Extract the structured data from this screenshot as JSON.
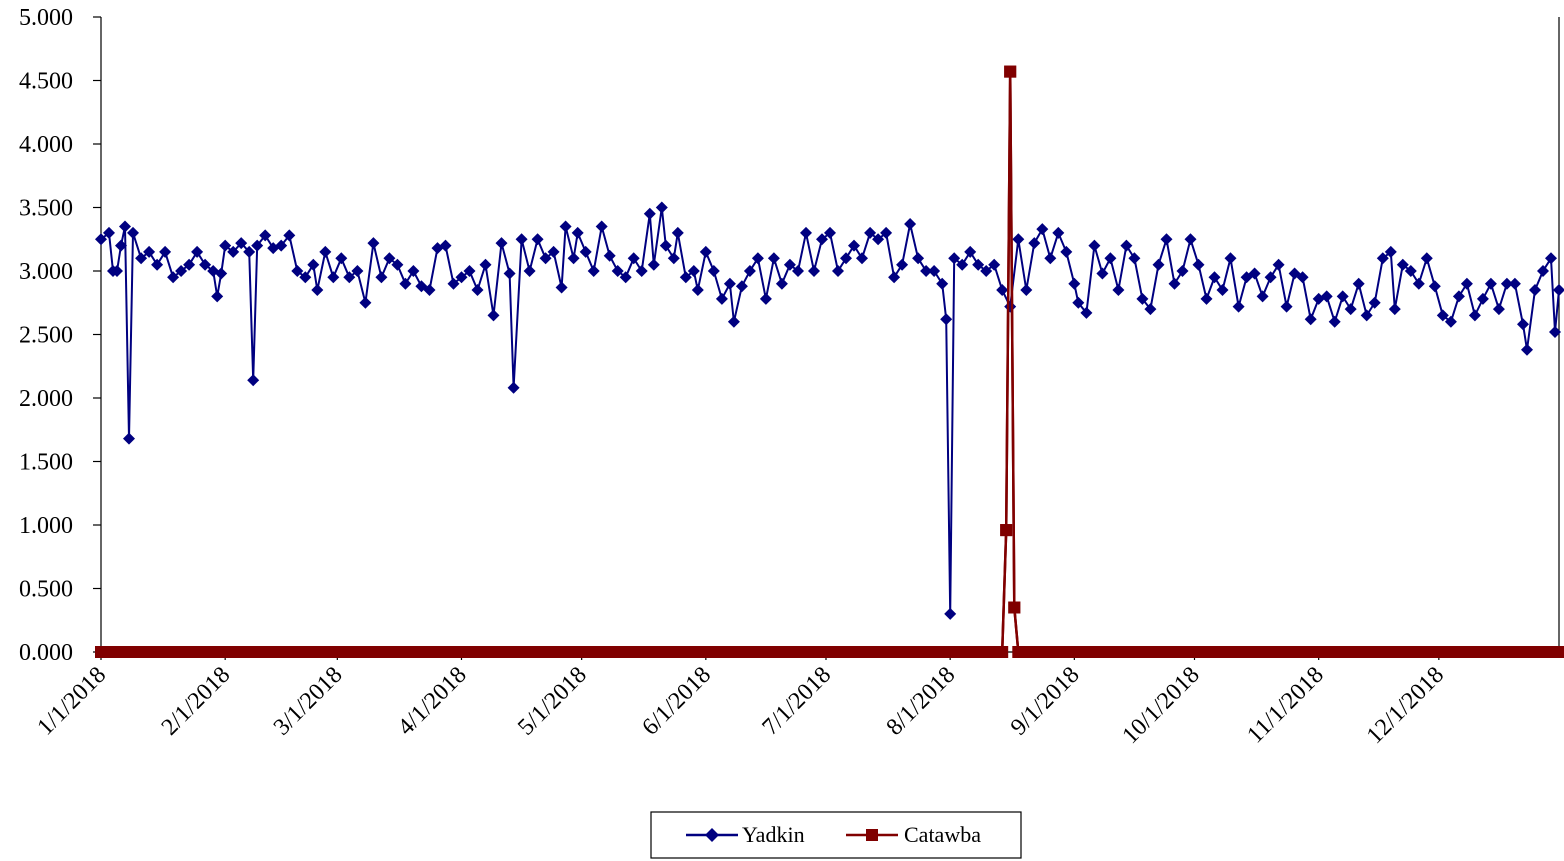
{
  "chart_data": {
    "type": "line",
    "title": "",
    "xlabel": "",
    "ylabel": "",
    "x_start": "1/1/2018",
    "x_end": "12/31/2018",
    "ylim": [
      0,
      5
    ],
    "y_ticks": [
      "0.000",
      "0.500",
      "1.000",
      "1.500",
      "2.000",
      "2.500",
      "3.000",
      "3.500",
      "4.000",
      "4.500",
      "5.000"
    ],
    "x_ticks": [
      {
        "label": "1/1/2018",
        "date": "2018-01-01"
      },
      {
        "label": "2/1/2018",
        "date": "2018-02-01"
      },
      {
        "label": "3/1/2018",
        "date": "2018-03-01"
      },
      {
        "label": "4/1/2018",
        "date": "2018-04-01"
      },
      {
        "label": "5/1/2018",
        "date": "2018-05-01"
      },
      {
        "label": "6/1/2018",
        "date": "2018-06-01"
      },
      {
        "label": "7/1/2018",
        "date": "2018-07-01"
      },
      {
        "label": "8/1/2018",
        "date": "2018-08-01"
      },
      {
        "label": "9/1/2018",
        "date": "2018-09-01"
      },
      {
        "label": "10/1/2018",
        "date": "2018-10-01"
      },
      {
        "label": "11/1/2018",
        "date": "2018-11-01"
      },
      {
        "label": "12/1/2018",
        "date": "2018-12-01"
      }
    ],
    "grid": false,
    "legend_position": "bottom",
    "series": [
      {
        "name": "Yadkin",
        "color": "#000080",
        "marker": "diamond",
        "points": [
          [
            "2018-01-01",
            3.25
          ],
          [
            "2018-01-03",
            3.3
          ],
          [
            "2018-01-04",
            3.0
          ],
          [
            "2018-01-05",
            3.0
          ],
          [
            "2018-01-06",
            3.2
          ],
          [
            "2018-01-07",
            3.35
          ],
          [
            "2018-01-08",
            1.68
          ],
          [
            "2018-01-09",
            3.3
          ],
          [
            "2018-01-11",
            3.1
          ],
          [
            "2018-01-13",
            3.15
          ],
          [
            "2018-01-15",
            3.05
          ],
          [
            "2018-01-17",
            3.15
          ],
          [
            "2018-01-19",
            2.95
          ],
          [
            "2018-01-21",
            3.0
          ],
          [
            "2018-01-23",
            3.05
          ],
          [
            "2018-01-25",
            3.15
          ],
          [
            "2018-01-27",
            3.05
          ],
          [
            "2018-01-29",
            3.0
          ],
          [
            "2018-01-30",
            2.8
          ],
          [
            "2018-01-31",
            2.98
          ],
          [
            "2018-02-01",
            3.2
          ],
          [
            "2018-02-03",
            3.15
          ],
          [
            "2018-02-05",
            3.22
          ],
          [
            "2018-02-07",
            3.15
          ],
          [
            "2018-02-08",
            2.14
          ],
          [
            "2018-02-09",
            3.2
          ],
          [
            "2018-02-11",
            3.28
          ],
          [
            "2018-02-13",
            3.18
          ],
          [
            "2018-02-15",
            3.2
          ],
          [
            "2018-02-17",
            3.28
          ],
          [
            "2018-02-19",
            3.0
          ],
          [
            "2018-02-21",
            2.95
          ],
          [
            "2018-02-23",
            3.05
          ],
          [
            "2018-02-24",
            2.85
          ],
          [
            "2018-02-26",
            3.15
          ],
          [
            "2018-02-28",
            2.95
          ],
          [
            "2018-03-02",
            3.1
          ],
          [
            "2018-03-04",
            2.95
          ],
          [
            "2018-03-06",
            3.0
          ],
          [
            "2018-03-08",
            2.75
          ],
          [
            "2018-03-10",
            3.22
          ],
          [
            "2018-03-12",
            2.95
          ],
          [
            "2018-03-14",
            3.1
          ],
          [
            "2018-03-16",
            3.05
          ],
          [
            "2018-03-18",
            2.9
          ],
          [
            "2018-03-20",
            3.0
          ],
          [
            "2018-03-22",
            2.88
          ],
          [
            "2018-03-24",
            2.85
          ],
          [
            "2018-03-26",
            3.18
          ],
          [
            "2018-03-28",
            3.2
          ],
          [
            "2018-03-30",
            2.9
          ],
          [
            "2018-04-01",
            2.95
          ],
          [
            "2018-04-03",
            3.0
          ],
          [
            "2018-04-05",
            2.85
          ],
          [
            "2018-04-07",
            3.05
          ],
          [
            "2018-04-09",
            2.65
          ],
          [
            "2018-04-11",
            3.22
          ],
          [
            "2018-04-13",
            2.98
          ],
          [
            "2018-04-14",
            2.08
          ],
          [
            "2018-04-16",
            3.25
          ],
          [
            "2018-04-18",
            3.0
          ],
          [
            "2018-04-20",
            3.25
          ],
          [
            "2018-04-22",
            3.1
          ],
          [
            "2018-04-24",
            3.15
          ],
          [
            "2018-04-26",
            2.87
          ],
          [
            "2018-04-27",
            3.35
          ],
          [
            "2018-04-29",
            3.1
          ],
          [
            "2018-04-30",
            3.3
          ],
          [
            "2018-05-02",
            3.15
          ],
          [
            "2018-05-04",
            3.0
          ],
          [
            "2018-05-06",
            3.35
          ],
          [
            "2018-05-08",
            3.12
          ],
          [
            "2018-05-10",
            3.0
          ],
          [
            "2018-05-12",
            2.95
          ],
          [
            "2018-05-14",
            3.1
          ],
          [
            "2018-05-16",
            3.0
          ],
          [
            "2018-05-18",
            3.45
          ],
          [
            "2018-05-19",
            3.05
          ],
          [
            "2018-05-21",
            3.5
          ],
          [
            "2018-05-22",
            3.2
          ],
          [
            "2018-05-24",
            3.1
          ],
          [
            "2018-05-25",
            3.3
          ],
          [
            "2018-05-27",
            2.95
          ],
          [
            "2018-05-29",
            3.0
          ],
          [
            "2018-05-30",
            2.85
          ],
          [
            "2018-06-01",
            3.15
          ],
          [
            "2018-06-03",
            3.0
          ],
          [
            "2018-06-05",
            2.78
          ],
          [
            "2018-06-07",
            2.9
          ],
          [
            "2018-06-08",
            2.6
          ],
          [
            "2018-06-10",
            2.88
          ],
          [
            "2018-06-12",
            3.0
          ],
          [
            "2018-06-14",
            3.1
          ],
          [
            "2018-06-16",
            2.78
          ],
          [
            "2018-06-18",
            3.1
          ],
          [
            "2018-06-20",
            2.9
          ],
          [
            "2018-06-22",
            3.05
          ],
          [
            "2018-06-24",
            3.0
          ],
          [
            "2018-06-26",
            3.3
          ],
          [
            "2018-06-28",
            3.0
          ],
          [
            "2018-06-30",
            3.25
          ],
          [
            "2018-07-02",
            3.3
          ],
          [
            "2018-07-04",
            3.0
          ],
          [
            "2018-07-06",
            3.1
          ],
          [
            "2018-07-08",
            3.2
          ],
          [
            "2018-07-10",
            3.1
          ],
          [
            "2018-07-12",
            3.3
          ],
          [
            "2018-07-14",
            3.25
          ],
          [
            "2018-07-16",
            3.3
          ],
          [
            "2018-07-18",
            2.95
          ],
          [
            "2018-07-20",
            3.05
          ],
          [
            "2018-07-22",
            3.37
          ],
          [
            "2018-07-24",
            3.1
          ],
          [
            "2018-07-26",
            3.0
          ],
          [
            "2018-07-28",
            3.0
          ],
          [
            "2018-07-30",
            2.9
          ],
          [
            "2018-07-31",
            2.62
          ],
          [
            "2018-08-01",
            0.3
          ],
          [
            "2018-08-02",
            3.1
          ],
          [
            "2018-08-04",
            3.05
          ],
          [
            "2018-08-06",
            3.15
          ],
          [
            "2018-08-08",
            3.05
          ],
          [
            "2018-08-10",
            3.0
          ],
          [
            "2018-08-12",
            3.05
          ],
          [
            "2018-08-14",
            2.85
          ],
          [
            "2018-08-16",
            2.72
          ],
          [
            "2018-08-18",
            3.25
          ],
          [
            "2018-08-20",
            2.85
          ],
          [
            "2018-08-22",
            3.22
          ],
          [
            "2018-08-24",
            3.33
          ],
          [
            "2018-08-26",
            3.1
          ],
          [
            "2018-08-28",
            3.3
          ],
          [
            "2018-08-30",
            3.15
          ],
          [
            "2018-09-01",
            2.9
          ],
          [
            "2018-09-02",
            2.75
          ],
          [
            "2018-09-04",
            2.67
          ],
          [
            "2018-09-06",
            3.2
          ],
          [
            "2018-09-08",
            2.98
          ],
          [
            "2018-09-10",
            3.1
          ],
          [
            "2018-09-12",
            2.85
          ],
          [
            "2018-09-14",
            3.2
          ],
          [
            "2018-09-16",
            3.1
          ],
          [
            "2018-09-18",
            2.78
          ],
          [
            "2018-09-20",
            2.7
          ],
          [
            "2018-09-22",
            3.05
          ],
          [
            "2018-09-24",
            3.25
          ],
          [
            "2018-09-26",
            2.9
          ],
          [
            "2018-09-28",
            3.0
          ],
          [
            "2018-09-30",
            3.25
          ],
          [
            "2018-10-02",
            3.05
          ],
          [
            "2018-10-04",
            2.78
          ],
          [
            "2018-10-06",
            2.95
          ],
          [
            "2018-10-08",
            2.85
          ],
          [
            "2018-10-10",
            3.1
          ],
          [
            "2018-10-12",
            2.72
          ],
          [
            "2018-10-14",
            2.95
          ],
          [
            "2018-10-16",
            2.98
          ],
          [
            "2018-10-18",
            2.8
          ],
          [
            "2018-10-20",
            2.95
          ],
          [
            "2018-10-22",
            3.05
          ],
          [
            "2018-10-24",
            2.72
          ],
          [
            "2018-10-26",
            2.98
          ],
          [
            "2018-10-28",
            2.95
          ],
          [
            "2018-10-30",
            2.62
          ],
          [
            "2018-11-01",
            2.78
          ],
          [
            "2018-11-03",
            2.8
          ],
          [
            "2018-11-05",
            2.6
          ],
          [
            "2018-11-07",
            2.8
          ],
          [
            "2018-11-09",
            2.7
          ],
          [
            "2018-11-11",
            2.9
          ],
          [
            "2018-11-13",
            2.65
          ],
          [
            "2018-11-15",
            2.75
          ],
          [
            "2018-11-17",
            3.1
          ],
          [
            "2018-11-19",
            3.15
          ],
          [
            "2018-11-20",
            2.7
          ],
          [
            "2018-11-22",
            3.05
          ],
          [
            "2018-11-24",
            3.0
          ],
          [
            "2018-11-26",
            2.9
          ],
          [
            "2018-11-28",
            3.1
          ],
          [
            "2018-11-30",
            2.88
          ],
          [
            "2018-12-02",
            2.65
          ],
          [
            "2018-12-04",
            2.6
          ],
          [
            "2018-12-06",
            2.8
          ],
          [
            "2018-12-08",
            2.9
          ],
          [
            "2018-12-10",
            2.65
          ],
          [
            "2018-12-12",
            2.78
          ],
          [
            "2018-12-14",
            2.9
          ],
          [
            "2018-12-16",
            2.7
          ],
          [
            "2018-12-18",
            2.9
          ],
          [
            "2018-12-20",
            2.9
          ],
          [
            "2018-12-22",
            2.58
          ],
          [
            "2018-12-23",
            2.38
          ],
          [
            "2018-12-25",
            2.85
          ],
          [
            "2018-12-27",
            3.0
          ],
          [
            "2018-12-29",
            3.1
          ],
          [
            "2018-12-30",
            2.52
          ],
          [
            "2018-12-31",
            2.85
          ]
        ]
      },
      {
        "name": "Catawba",
        "color": "#800000",
        "marker": "square",
        "baseline_value": 0.0,
        "points": [
          [
            "2018-08-15",
            0.96
          ],
          [
            "2018-08-16",
            4.57
          ],
          [
            "2018-08-17",
            0.35
          ]
        ]
      }
    ]
  }
}
